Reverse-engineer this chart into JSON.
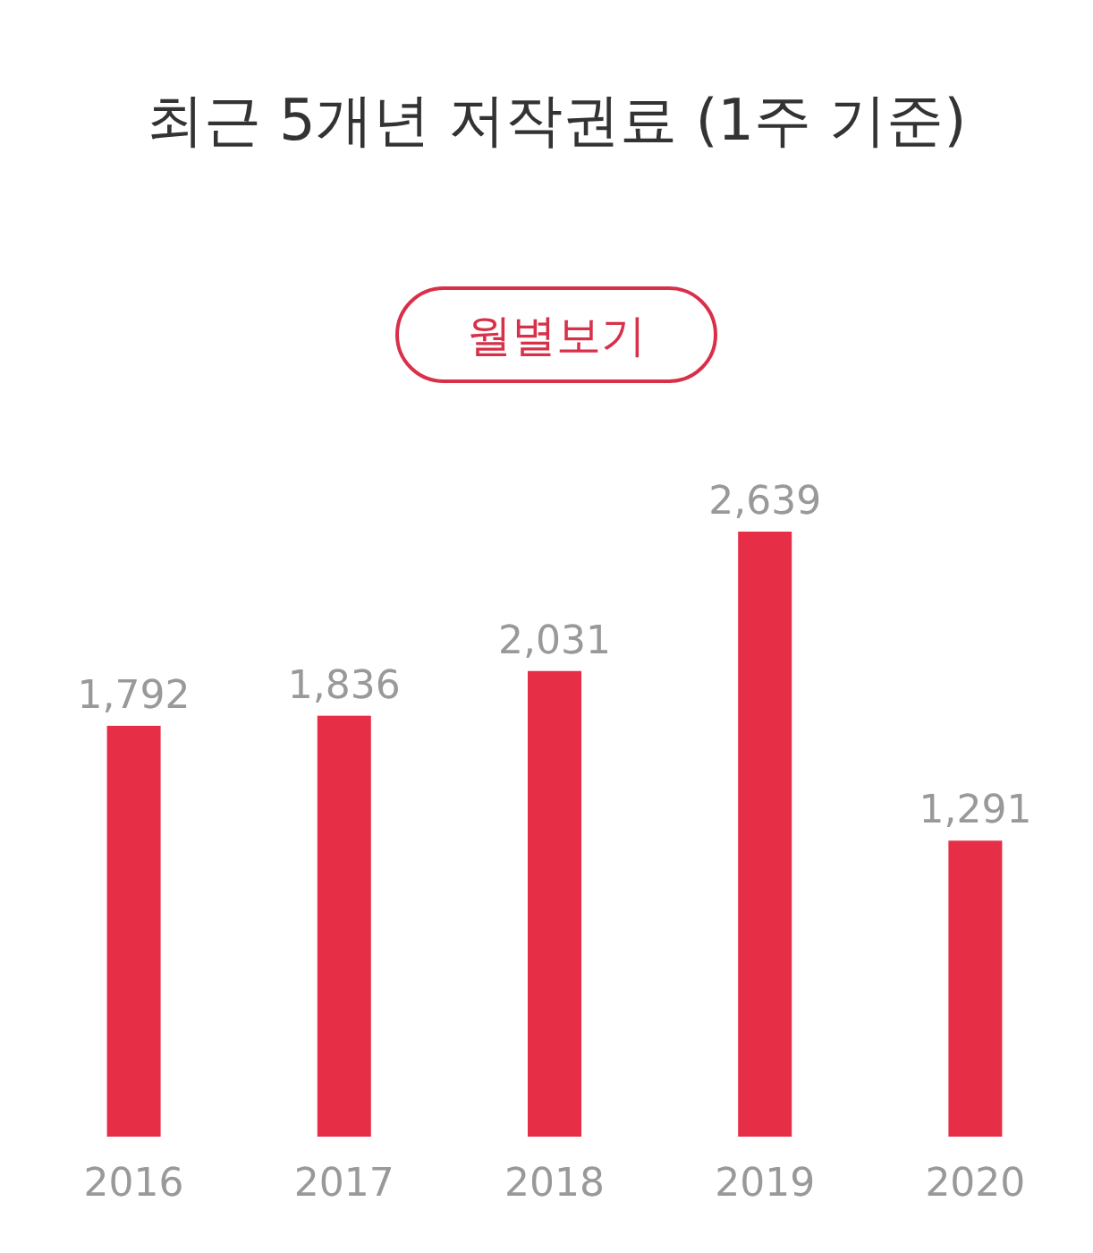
{
  "chart_data": {
    "type": "bar",
    "title": "최근 5개년 저작권료 (1주 기준)",
    "categories": [
      "2016",
      "2017",
      "2018",
      "2019",
      "2020"
    ],
    "values": [
      1792,
      1836,
      2031,
      2639,
      1291
    ],
    "value_labels": [
      "1,792",
      "1,836",
      "2,031",
      "2,639",
      "1,291"
    ],
    "color": "#e62e47",
    "annotations": [
      "월별보기"
    ]
  }
}
